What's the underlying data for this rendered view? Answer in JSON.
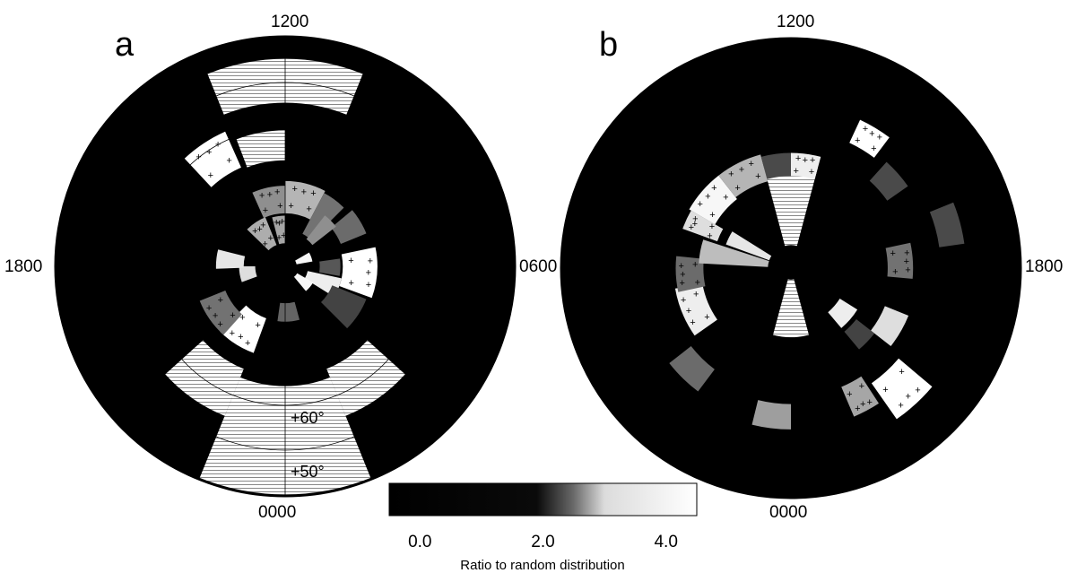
{
  "chart_data": {
    "type": "heatmap",
    "description_free": true,
    "panels": [
      {
        "letter": "a",
        "labels": {
          "top": "1200",
          "left": "1800",
          "right": "0600",
          "bottom": "0000"
        },
        "lat_rings": [
          {
            "label": "+60°",
            "value": 60
          },
          {
            "label": "+50°",
            "value": 50
          }
        ],
        "colatitude_range": [
          0,
          45
        ],
        "grid_lines": true,
        "sectors": [
          {
            "angle_deg": [
              -22,
              22
            ],
            "r": [
              0.71,
              0.9
            ],
            "value": 0.0,
            "hatch": true
          },
          {
            "angle_deg": [
              22,
              158
            ],
            "r": [
              0.48,
              0.99
            ],
            "value": 0.0
          },
          {
            "angle_deg": [
              202,
              338
            ],
            "r": [
              0.48,
              0.99
            ],
            "value": 0.0
          },
          {
            "angle_deg": [
              158,
              202
            ],
            "r": [
              0.52,
              0.99
            ],
            "value": 2.2,
            "hatch": true
          },
          {
            "angle_deg": [
              132,
              158
            ],
            "r": [
              0.48,
              0.7
            ],
            "value": 2.2,
            "hatch": true
          },
          {
            "angle_deg": [
              202,
              228
            ],
            "r": [
              0.48,
              0.7
            ],
            "value": 2.2,
            "hatch": true
          },
          {
            "angle_deg": [
              -43,
              -24
            ],
            "r": [
              0.47,
              0.64
            ],
            "value": 4.4,
            "marks": true
          },
          {
            "angle_deg": [
              -21,
              0
            ],
            "r": [
              0.46,
              0.59
            ],
            "value": 2.0,
            "hatch": true
          },
          {
            "angle_deg": [
              -24,
              0
            ],
            "r": [
              0.23,
              0.35
            ],
            "value": 3.0,
            "marks": true
          },
          {
            "angle_deg": [
              0,
              28
            ],
            "r": [
              0.23,
              0.37
            ],
            "value": 3.5,
            "marks": true
          },
          {
            "angle_deg": [
              -15,
              0
            ],
            "r": [
              0.1,
              0.22
            ],
            "value": 3.3,
            "marks": true
          },
          {
            "angle_deg": [
              28,
              45
            ],
            "r": [
              0.16,
              0.36
            ],
            "value": 2.6
          },
          {
            "angle_deg": [
              50,
              68
            ],
            "r": [
              0.26,
              0.38
            ],
            "value": 2.5
          },
          {
            "angle_deg": [
              38,
              52
            ],
            "r": [
              0.15,
              0.28
            ],
            "value": 3.0
          },
          {
            "angle_deg": [
              78,
              110
            ],
            "r": [
              0.25,
              0.4
            ],
            "value": 4.4,
            "marks": true
          },
          {
            "angle_deg": [
              82,
              100
            ],
            "r": [
              0.15,
              0.24
            ],
            "value": 2.2
          },
          {
            "angle_deg": [
              102,
              122
            ],
            "r": [
              0.1,
              0.25
            ],
            "value": 4.2
          },
          {
            "angle_deg": [
              112,
              135
            ],
            "r": [
              0.22,
              0.38
            ],
            "value": 1.9
          },
          {
            "angle_deg": [
              165,
              188
            ],
            "r": [
              0.16,
              0.24
            ],
            "value": 2.4
          },
          {
            "angle_deg": [
              200,
              225
            ],
            "r": [
              0.24,
              0.4
            ],
            "value": 4.4,
            "marks": true
          },
          {
            "angle_deg": [
              222,
              248
            ],
            "r": [
              0.28,
              0.4
            ],
            "value": 2.6,
            "marks": true
          },
          {
            "angle_deg": [
              250,
              270
            ],
            "r": [
              0.13,
              0.2
            ],
            "value": 4.0
          },
          {
            "angle_deg": [
              268,
              284
            ],
            "r": [
              0.18,
              0.3
            ],
            "value": 4.1
          },
          {
            "angle_deg": [
              314,
              338
            ],
            "r": [
              0.1,
              0.23
            ],
            "value": 3.4,
            "marks": true
          },
          {
            "angle_deg": [
              120,
              140
            ],
            "r": [
              0.06,
              0.14
            ],
            "value": 4.3
          },
          {
            "angle_deg": [
              60,
              80
            ],
            "r": [
              0.05,
              0.12
            ],
            "value": 4.3
          }
        ]
      },
      {
        "letter": "b",
        "labels": {
          "top": "1200",
          "right": "1800",
          "bottom": "0000"
        },
        "sectors": [
          {
            "angle_deg": [
              -15,
              15
            ],
            "r": [
              0.1,
              0.45
            ],
            "value": 2.2,
            "hatch": true
          },
          {
            "angle_deg": [
              165,
              195
            ],
            "r": [
              0.05,
              0.3
            ],
            "value": 2.2,
            "hatch": true
          },
          {
            "angle_deg": [
              -70,
              -60
            ],
            "r": [
              0.34,
              0.5
            ],
            "value": 4.0,
            "marks": true
          },
          {
            "angle_deg": [
              -60,
              -38
            ],
            "r": [
              0.38,
              0.51
            ],
            "value": 4.3,
            "marks": true
          },
          {
            "angle_deg": [
              -38,
              -15
            ],
            "r": [
              0.39,
              0.51
            ],
            "value": 3.5,
            "marks": true
          },
          {
            "angle_deg": [
              -15,
              0
            ],
            "r": [
              0.4,
              0.5
            ],
            "value": 2.0
          },
          {
            "angle_deg": [
              0,
              15
            ],
            "r": [
              0.4,
              0.5
            ],
            "value": 4.2,
            "marks": true
          },
          {
            "angle_deg": [
              25,
              37
            ],
            "r": [
              0.6,
              0.71
            ],
            "value": 4.4,
            "marks": true
          },
          {
            "angle_deg": [
              42,
              55
            ],
            "r": [
              0.51,
              0.62
            ],
            "value": 2.0
          },
          {
            "angle_deg": [
              68,
              82
            ],
            "r": [
              0.65,
              0.76
            ],
            "value": 2.0
          },
          {
            "angle_deg": [
              78,
              95
            ],
            "r": [
              0.42,
              0.53
            ],
            "value": 2.6,
            "marks": true
          },
          {
            "angle_deg": [
              112,
              128
            ],
            "r": [
              0.44,
              0.55
            ],
            "value": 4.0
          },
          {
            "angle_deg": [
              128,
              140
            ],
            "r": [
              0.36,
              0.46
            ],
            "value": 1.9
          },
          {
            "angle_deg": [
              130,
              145
            ],
            "r": [
              0.61,
              0.8
            ],
            "value": 4.4,
            "marks": true
          },
          {
            "angle_deg": [
              147,
              157
            ],
            "r": [
              0.56,
              0.7
            ],
            "value": 3.3,
            "marks": true
          },
          {
            "angle_deg": [
              122,
              140
            ],
            "r": [
              0.25,
              0.34
            ],
            "value": 4.2
          },
          {
            "angle_deg": [
              180,
              194
            ],
            "r": [
              0.59,
              0.7
            ],
            "value": 3.2
          },
          {
            "angle_deg": [
              217,
              232
            ],
            "r": [
              0.55,
              0.67
            ],
            "value": 2.5
          },
          {
            "angle_deg": [
              235,
              260
            ],
            "r": [
              0.39,
              0.51
            ],
            "value": 4.2,
            "marks": true
          },
          {
            "angle_deg": [
              258,
              276
            ],
            "r": [
              0.38,
              0.5
            ],
            "value": 2.5,
            "marks": true
          },
          {
            "angle_deg": [
              273,
              288
            ],
            "r": [
              0.1,
              0.4
            ],
            "value": 3.6
          },
          {
            "angle_deg": [
              290,
              302
            ],
            "r": [
              0.1,
              0.3
            ],
            "value": 4.1
          }
        ]
      }
    ],
    "colorbar": {
      "title": "Ratio to random distribution",
      "ticks": [
        0.0,
        2.0,
        4.0
      ],
      "tick_labels": [
        "0.0",
        "2.0",
        "4.0"
      ],
      "range": [
        -0.5,
        4.5
      ],
      "colors": {
        "low": "#000000",
        "high": "#ffffff"
      }
    }
  }
}
